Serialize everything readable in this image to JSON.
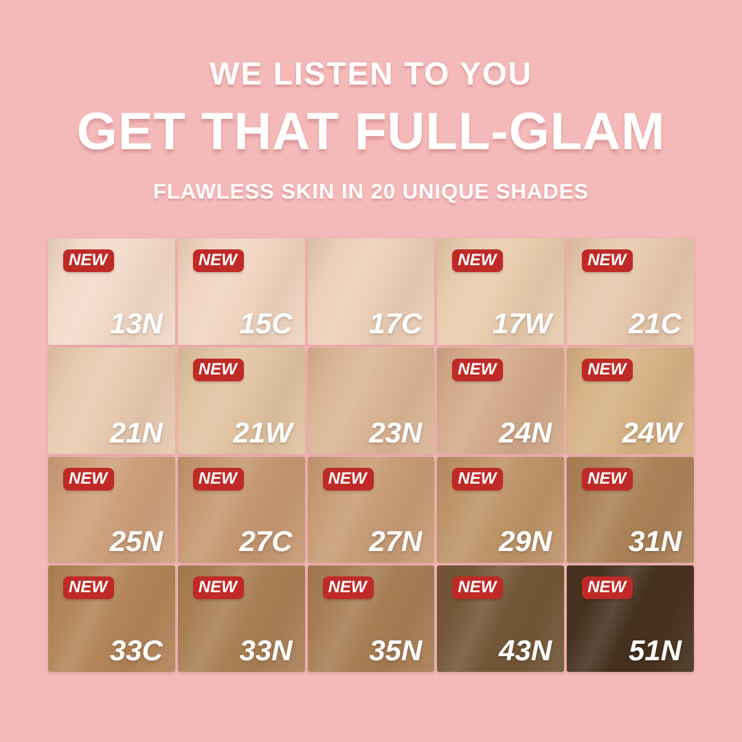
{
  "background_color": "#f4b9b9",
  "header": {
    "line1": "WE LISTEN TO YOU",
    "line2": "GET THAT FULL-GLAM",
    "line3": "FLAWLESS SKIN IN 20 UNIQUE SHADES",
    "text_color": "#ffffff"
  },
  "badge": {
    "label": "NEW",
    "bg": "#bf2a26",
    "text_color": "#ffffff"
  },
  "grid": {
    "columns": 5,
    "rows": 4,
    "shade_count": 20
  },
  "shades": [
    {
      "code": "13N",
      "color": "#f2dac9",
      "new": true
    },
    {
      "code": "15C",
      "color": "#f0d5c1",
      "new": true
    },
    {
      "code": "17C",
      "color": "#ebcfb8",
      "new": false
    },
    {
      "code": "17W",
      "color": "#e8ccae",
      "new": true
    },
    {
      "code": "21C",
      "color": "#e6c8ad",
      "new": true
    },
    {
      "code": "21N",
      "color": "#e7cab0",
      "new": false
    },
    {
      "code": "21W",
      "color": "#e0c4a2",
      "new": true
    },
    {
      "code": "23N",
      "color": "#dab696",
      "new": false
    },
    {
      "code": "24N",
      "color": "#d3aa8c",
      "new": true
    },
    {
      "code": "24W",
      "color": "#d6b286",
      "new": true
    },
    {
      "code": "25N",
      "color": "#cda07c",
      "new": true
    },
    {
      "code": "27C",
      "color": "#c59872",
      "new": true
    },
    {
      "code": "27N",
      "color": "#c79c76",
      "new": true
    },
    {
      "code": "29N",
      "color": "#bd9468",
      "new": true
    },
    {
      "code": "31N",
      "color": "#ab8258",
      "new": true
    },
    {
      "code": "33C",
      "color": "#b28457",
      "new": true
    },
    {
      "code": "33N",
      "color": "#a97f55",
      "new": true
    },
    {
      "code": "35N",
      "color": "#a77d54",
      "new": true
    },
    {
      "code": "43N",
      "color": "#725637",
      "new": true
    },
    {
      "code": "51N",
      "color": "#45301e",
      "new": true
    }
  ]
}
